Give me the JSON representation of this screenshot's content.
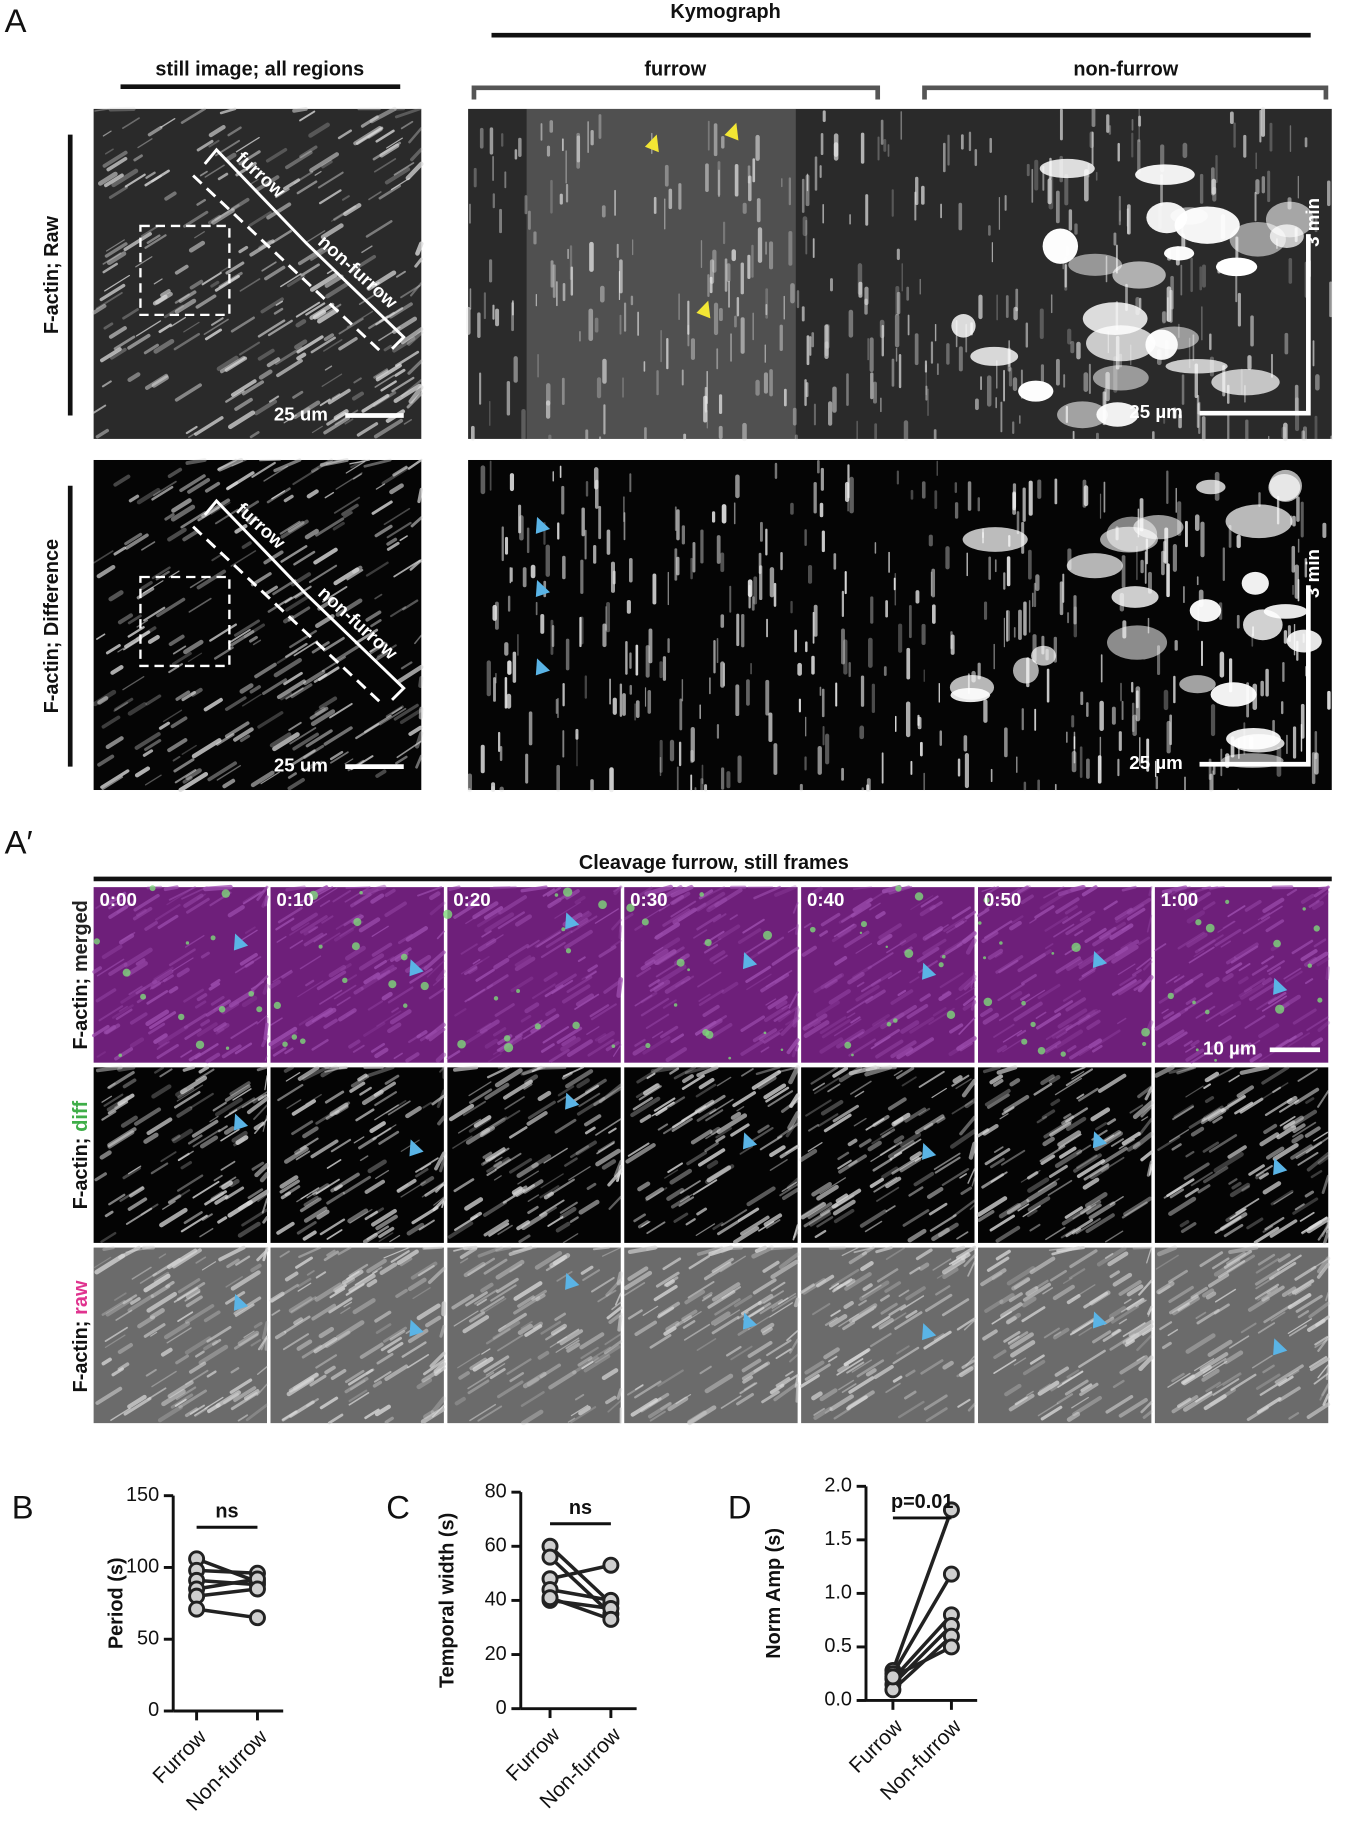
{
  "figure": {
    "panel_a": {
      "label": "A",
      "kymograph_title": "Kymograph",
      "still_title": "still image; all regions",
      "kymo_furrow": "furrow",
      "kymo_nonfurrow": "non-furrow",
      "row_labels": [
        "F-actin; Raw",
        "F-actin; Difference"
      ],
      "still_overlay": [
        "furrow",
        "non-furrow"
      ],
      "still_scale": "25 um",
      "kymo_scale": "25 µm",
      "kymo_time": "3 min"
    },
    "panel_a2": {
      "label": "A′",
      "title": "Cleavage furrow, still frames",
      "times": [
        "0:00",
        "0:10",
        "0:20",
        "0:30",
        "0:40",
        "0:50",
        "1:00"
      ],
      "scale": "10 µm",
      "row_prefix": "F-actin;",
      "row_words": [
        "merged",
        "diff",
        "raw"
      ],
      "row_word_colors": [
        "#222222",
        "#3fae49",
        "#e0338f"
      ]
    }
  },
  "chart_data": [
    {
      "type": "paired",
      "panel_label": "B",
      "ylabel": "Period (s)",
      "categories": [
        "Furrow",
        "Non-furrow"
      ],
      "ylim": [
        0,
        150
      ],
      "yticks": [
        0,
        50,
        100,
        150
      ],
      "annotation": "ns",
      "color": "#222222",
      "marker_color": "#cfcfcf",
      "series": [
        {
          "values": [
            106,
            90
          ]
        },
        {
          "values": [
            98,
            96
          ]
        },
        {
          "values": [
            91,
            88
          ]
        },
        {
          "values": [
            85,
            92
          ]
        },
        {
          "values": [
            80,
            85
          ]
        },
        {
          "values": [
            71,
            65
          ]
        }
      ]
    },
    {
      "type": "paired",
      "panel_label": "C",
      "ylabel": "Temporal width (s)",
      "categories": [
        "Furrow",
        "Non-furrow"
      ],
      "ylim": [
        0,
        80
      ],
      "yticks": [
        0,
        20,
        40,
        60,
        80
      ],
      "annotation": "ns",
      "color": "#222222",
      "marker_color": "#cfcfcf",
      "series": [
        {
          "values": [
            60,
            39
          ]
        },
        {
          "values": [
            56,
            35
          ]
        },
        {
          "values": [
            48,
            53
          ]
        },
        {
          "values": [
            44,
            40
          ]
        },
        {
          "values": [
            40,
            37
          ]
        },
        {
          "values": [
            41,
            33
          ]
        }
      ]
    },
    {
      "type": "paired",
      "panel_label": "D",
      "ylabel": "Norm Amp (s)",
      "categories": [
        "Furrow",
        "Non-furrow"
      ],
      "ylim": [
        0,
        2
      ],
      "yticks": [
        {
          "value": 0,
          "label": "0.0"
        },
        {
          "value": 0.5,
          "label": "0.5"
        },
        {
          "value": 1,
          "label": "1.0"
        },
        {
          "value": 1.5,
          "label": "1.5"
        },
        {
          "value": 2,
          "label": "2.0"
        }
      ],
      "annotation": "p=0.01",
      "color": "#222222",
      "marker_color": "#cfcfcf",
      "series": [
        {
          "values": [
            0.28,
            1.78
          ]
        },
        {
          "values": [
            0.25,
            1.18
          ]
        },
        {
          "values": [
            0.2,
            0.8
          ]
        },
        {
          "values": [
            0.15,
            0.7
          ]
        },
        {
          "values": [
            0.1,
            0.6
          ]
        },
        {
          "values": [
            0.22,
            0.5
          ]
        }
      ]
    }
  ]
}
